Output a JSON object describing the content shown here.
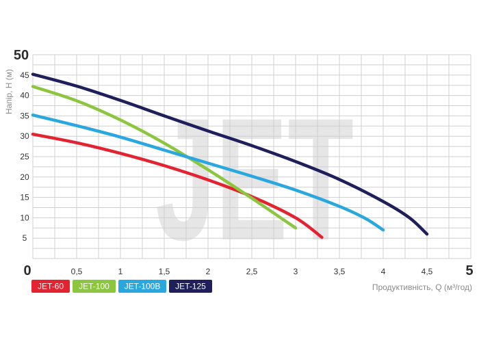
{
  "chart_data": {
    "type": "line",
    "watermark": "JET",
    "xlabel": "Продуктивність, Q (м³/год)",
    "ylabel": "Напір, H (м)",
    "xlim": [
      0,
      5
    ],
    "ylim": [
      0,
      50
    ],
    "grid": true,
    "legend_position": "bottom-left",
    "x_tick_labels": [
      "0",
      "0,5",
      "1",
      "1,5",
      "2",
      "2,5",
      "3",
      "3,5",
      "4",
      "4,5",
      "5"
    ],
    "y_tick_labels": [
      "0",
      "5",
      "10",
      "15",
      "20",
      "25",
      "30",
      "35",
      "40",
      "45",
      "50"
    ],
    "series": [
      {
        "name": "JET-60",
        "color": "#e42330",
        "x": [
          0,
          0.5,
          1,
          1.5,
          2,
          2.5,
          3,
          3.3
        ],
        "y": [
          30.5,
          28.4,
          25.8,
          22.8,
          19.3,
          15.2,
          10.0,
          5.2
        ]
      },
      {
        "name": "JET-100",
        "color": "#8cc63f",
        "x": [
          0,
          0.5,
          1,
          1.5,
          2,
          2.5,
          3
        ],
        "y": [
          42.2,
          38.7,
          34.0,
          28.3,
          21.8,
          14.8,
          7.5
        ]
      },
      {
        "name": "JET-100B",
        "color": "#29a8df",
        "x": [
          0,
          0.5,
          1,
          1.5,
          2,
          2.5,
          3,
          3.5,
          3.8,
          4
        ],
        "y": [
          35.2,
          32.6,
          29.8,
          26.6,
          23.4,
          20.2,
          16.8,
          12.8,
          9.8,
          7.0
        ]
      },
      {
        "name": "JET-125",
        "color": "#1f1f5c",
        "x": [
          0,
          0.5,
          1,
          1.5,
          2,
          2.5,
          3,
          3.5,
          4,
          4.3,
          4.5
        ],
        "y": [
          45.2,
          42.3,
          38.8,
          35.0,
          31.3,
          27.7,
          23.8,
          19.4,
          14.0,
          10.0,
          6.0
        ]
      }
    ]
  }
}
